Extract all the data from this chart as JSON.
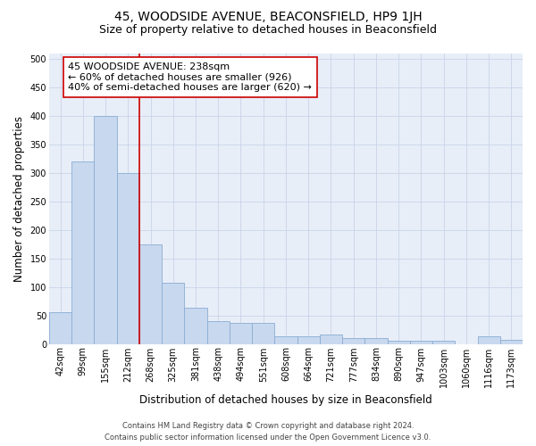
{
  "title": "45, WOODSIDE AVENUE, BEACONSFIELD, HP9 1JH",
  "subtitle": "Size of property relative to detached houses in Beaconsfield",
  "xlabel": "Distribution of detached houses by size in Beaconsfield",
  "ylabel": "Number of detached properties",
  "bar_labels": [
    "42sqm",
    "99sqm",
    "155sqm",
    "212sqm",
    "268sqm",
    "325sqm",
    "381sqm",
    "438sqm",
    "494sqm",
    "551sqm",
    "608sqm",
    "664sqm",
    "721sqm",
    "777sqm",
    "834sqm",
    "890sqm",
    "947sqm",
    "1003sqm",
    "1060sqm",
    "1116sqm",
    "1173sqm"
  ],
  "bar_values": [
    55,
    320,
    400,
    300,
    175,
    108,
    63,
    40,
    37,
    37,
    13,
    13,
    17,
    10,
    10,
    5,
    5,
    5,
    0,
    13,
    7
  ],
  "bar_color": "#c8d8ee",
  "bar_edge_color": "#8aadd4",
  "vline_x": 3.5,
  "vline_color": "#cc0000",
  "ylim": [
    0,
    510
  ],
  "yticks": [
    0,
    50,
    100,
    150,
    200,
    250,
    300,
    350,
    400,
    450,
    500
  ],
  "annotation_title": "45 WOODSIDE AVENUE: 238sqm",
  "annotation_line1": "← 60% of detached houses are smaller (926)",
  "annotation_line2": "40% of semi-detached houses are larger (620) →",
  "footer_line1": "Contains HM Land Registry data © Crown copyright and database right 2024.",
  "footer_line2": "Contains public sector information licensed under the Open Government Licence v3.0.",
  "title_fontsize": 10,
  "subtitle_fontsize": 9,
  "axis_label_fontsize": 8.5,
  "tick_fontsize": 7,
  "annotation_fontsize": 8,
  "footer_fontsize": 6,
  "grid_color": "#c8d4e8",
  "plot_bg_color": "#e8eef8",
  "background_color": "#ffffff"
}
